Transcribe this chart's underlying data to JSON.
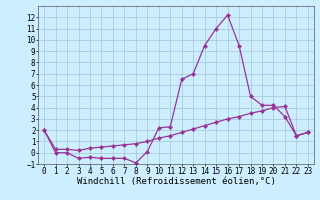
{
  "xlabel": "Windchill (Refroidissement éolien,°C)",
  "x": [
    0,
    1,
    2,
    3,
    4,
    5,
    6,
    7,
    8,
    9,
    10,
    11,
    12,
    13,
    14,
    15,
    16,
    17,
    18,
    19,
    20,
    21,
    22,
    23
  ],
  "line1": [
    2.0,
    0.0,
    0.0,
    -0.5,
    -0.4,
    -0.5,
    -0.5,
    -0.5,
    -0.9,
    0.1,
    2.2,
    2.3,
    6.5,
    7.0,
    9.5,
    11.0,
    12.2,
    9.5,
    5.0,
    4.2,
    4.2,
    3.2,
    1.5,
    1.8
  ],
  "line2": [
    2.0,
    0.3,
    0.3,
    0.2,
    0.4,
    0.5,
    0.6,
    0.7,
    0.8,
    1.0,
    1.3,
    1.5,
    1.8,
    2.1,
    2.4,
    2.7,
    3.0,
    3.2,
    3.5,
    3.7,
    4.0,
    4.1,
    1.5,
    1.8
  ],
  "line_color": "#993399",
  "bg_color": "#cceeff",
  "grid_color": "#99bbcc",
  "ylim": [
    -1,
    13
  ],
  "xlim": [
    -0.5,
    23.5
  ],
  "yticks": [
    -1,
    0,
    1,
    2,
    3,
    4,
    5,
    6,
    7,
    8,
    9,
    10,
    11,
    12
  ],
  "xticks": [
    0,
    1,
    2,
    3,
    4,
    5,
    6,
    7,
    8,
    9,
    10,
    11,
    12,
    13,
    14,
    15,
    16,
    17,
    18,
    19,
    20,
    21,
    22,
    23
  ],
  "marker": "D",
  "markersize": 2.0,
  "linewidth": 0.9,
  "xlabel_fontsize": 6.5,
  "tick_fontsize": 5.5
}
